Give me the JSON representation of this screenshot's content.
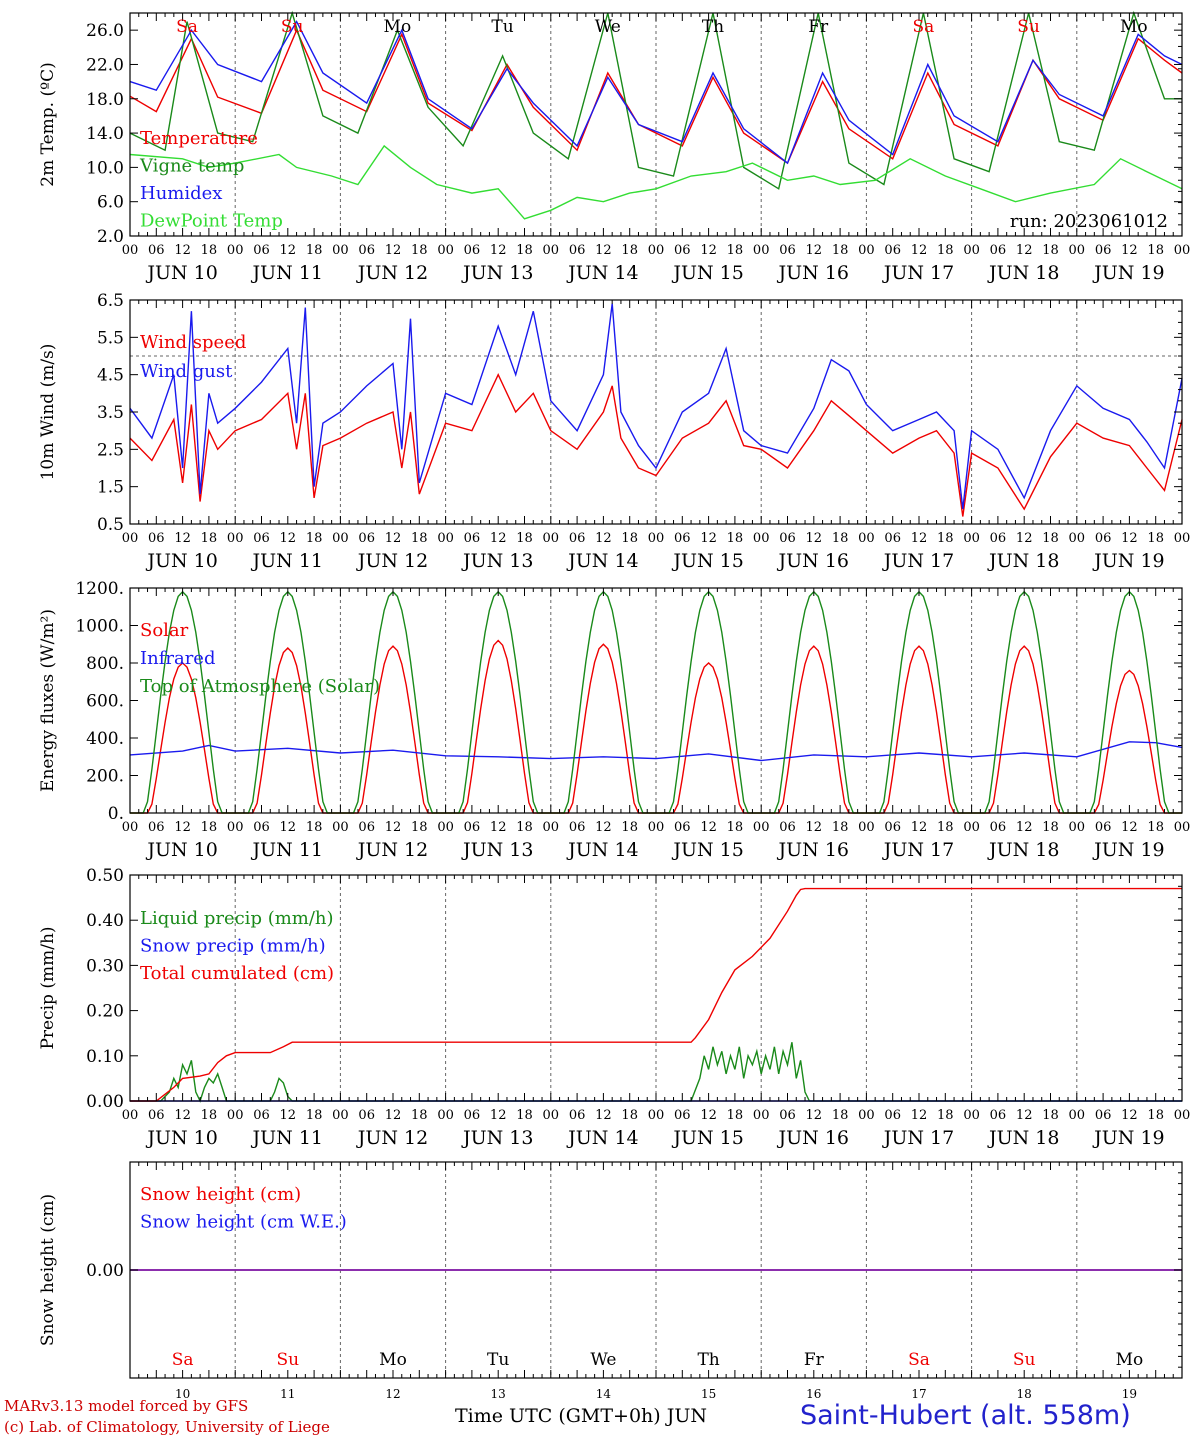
{
  "colors": {
    "red": "#ee0000",
    "blue": "#1a1aee",
    "dark_green": "#1a8a1a",
    "light_green": "#33dd33",
    "purple": "#8e24aa",
    "grid": "#666666",
    "axis": "#000000",
    "weekend": "#ee0000",
    "weekday": "#000000"
  },
  "days": [
    {
      "abbr": "Sa",
      "date_label": "JUN 10",
      "num": "10",
      "weekend": true
    },
    {
      "abbr": "Su",
      "date_label": "JUN 11",
      "num": "11",
      "weekend": true
    },
    {
      "abbr": "Mo",
      "date_label": "JUN 12",
      "num": "12",
      "weekend": false
    },
    {
      "abbr": "Tu",
      "date_label": "JUN 13",
      "num": "13",
      "weekend": false
    },
    {
      "abbr": "We",
      "date_label": "JUN 14",
      "num": "14",
      "weekend": false
    },
    {
      "abbr": "Th",
      "date_label": "JUN 15",
      "num": "15",
      "weekend": false
    },
    {
      "abbr": "Fr",
      "date_label": "JUN 16",
      "num": "16",
      "weekend": false
    },
    {
      "abbr": "Sa",
      "date_label": "JUN 17",
      "num": "17",
      "weekend": true
    },
    {
      "abbr": "Su",
      "date_label": "JUN 18",
      "num": "18",
      "weekend": true
    },
    {
      "abbr": "Mo",
      "date_label": "JUN 19",
      "num": "19",
      "weekend": false
    }
  ],
  "hour_ticks": [
    "00",
    "06",
    "12",
    "18"
  ],
  "final_hour_tick": "00",
  "footer": {
    "model": "MARv3.13 model forced by GFS",
    "lab": "(c) Lab. of Climatology, University of Liege",
    "time_label": "Time UTC (GMT+0h) JUN",
    "station": "Saint-Hubert (alt. 558m)"
  },
  "chart_data": [
    {
      "type": "line",
      "ylabel": "2m Temp. (ºC)",
      "ylim": [
        2.0,
        28.0
      ],
      "yticks": [
        2.0,
        6.0,
        10.0,
        14.0,
        18.0,
        22.0,
        26.0
      ],
      "ytick_labels": [
        "2.0",
        "6.0",
        "10.0",
        "14.0",
        "18.0",
        "22.0",
        "26.0"
      ],
      "x_unit": "hours since JUN 10 00 UTC",
      "xlim": [
        0,
        240
      ],
      "annotation": "run: 2023061012",
      "show_day_abbr": true,
      "series": [
        {
          "name": "Temperature",
          "color": "red",
          "x": [
            0,
            6,
            14,
            20,
            30,
            38,
            44,
            54,
            62,
            68,
            78,
            86,
            92,
            102,
            109,
            116,
            126,
            133,
            140,
            150,
            158,
            164,
            174,
            182,
            188,
            198,
            206,
            212,
            222,
            230,
            236,
            240
          ],
          "y": [
            18.3,
            16.5,
            25.0,
            18.2,
            16.3,
            26.0,
            19.0,
            16.5,
            25.5,
            17.5,
            14.3,
            22.0,
            17.0,
            12.0,
            21.0,
            15.0,
            12.5,
            20.5,
            14.0,
            10.5,
            20.0,
            14.5,
            11.0,
            21.0,
            15.0,
            12.5,
            22.5,
            18.0,
            15.5,
            25.0,
            22.5,
            21.0
          ]
        },
        {
          "name": "Vigne temp",
          "color": "dark_green",
          "x": [
            0,
            8,
            13,
            20,
            28,
            37,
            44,
            52,
            61,
            68,
            76,
            85,
            92,
            100,
            109,
            116,
            124,
            133,
            140,
            148,
            157,
            164,
            172,
            181,
            188,
            196,
            205,
            212,
            220,
            229,
            236,
            240
          ],
          "y": [
            14.0,
            12.0,
            27.0,
            14.0,
            13.0,
            28.0,
            16.0,
            14.0,
            26.0,
            17.0,
            12.5,
            23.0,
            14.0,
            11.0,
            28.0,
            10.0,
            9.0,
            28.0,
            10.0,
            7.5,
            28.0,
            10.5,
            8.0,
            28.0,
            11.0,
            9.5,
            28.0,
            13.0,
            12.0,
            28.0,
            18.0,
            18.0
          ]
        },
        {
          "name": "Humidex",
          "color": "blue",
          "x": [
            0,
            6,
            14,
            20,
            30,
            38,
            44,
            54,
            62,
            68,
            78,
            86,
            92,
            102,
            109,
            116,
            126,
            133,
            140,
            150,
            158,
            164,
            174,
            182,
            188,
            198,
            206,
            212,
            222,
            230,
            236,
            240
          ],
          "y": [
            20.0,
            19.0,
            26.0,
            22.0,
            20.0,
            27.0,
            21.0,
            17.5,
            26.0,
            18.0,
            14.5,
            21.5,
            17.5,
            12.5,
            20.5,
            15.0,
            13.0,
            21.0,
            14.5,
            10.5,
            21.0,
            15.5,
            11.5,
            22.0,
            16.0,
            13.0,
            22.5,
            18.5,
            16.0,
            25.5,
            23.0,
            22.0
          ]
        },
        {
          "name": "DewPoint Temp",
          "color": "light_green",
          "x": [
            0,
            12,
            18,
            24,
            34,
            38,
            46,
            52,
            58,
            64,
            70,
            78,
            84,
            90,
            96,
            102,
            108,
            114,
            120,
            128,
            136,
            142,
            150,
            156,
            162,
            170,
            178,
            186,
            194,
            202,
            210,
            220,
            226,
            232,
            240
          ],
          "y": [
            11.5,
            11.0,
            10.0,
            10.5,
            11.5,
            10.0,
            9.0,
            8.0,
            12.5,
            10.0,
            8.0,
            7.0,
            7.5,
            4.0,
            5.0,
            6.5,
            6.0,
            7.0,
            7.5,
            9.0,
            9.5,
            10.5,
            8.5,
            9.0,
            8.0,
            8.5,
            11.0,
            9.0,
            7.5,
            6.0,
            7.0,
            8.0,
            11.0,
            9.5,
            7.5
          ]
        }
      ]
    },
    {
      "type": "line",
      "ylabel": "10m Wind (m/s)",
      "ylim": [
        0.5,
        6.5
      ],
      "yticks": [
        0.5,
        1.5,
        2.5,
        3.5,
        4.5,
        5.5,
        6.5
      ],
      "ytick_labels": [
        "0.5",
        "1.5",
        "2.5",
        "3.5",
        "4.5",
        "5.5",
        "6.5"
      ],
      "reference_line": 5.0,
      "x_unit": "hours since JUN 10 00 UTC",
      "xlim": [
        0,
        240
      ],
      "series": [
        {
          "name": "Wind speed",
          "color": "red",
          "x": [
            0,
            5,
            10,
            12,
            14,
            16,
            18,
            20,
            24,
            30,
            36,
            38,
            40,
            42,
            44,
            48,
            54,
            60,
            62,
            64,
            66,
            72,
            78,
            84,
            88,
            92,
            96,
            102,
            108,
            110,
            112,
            116,
            120,
            126,
            132,
            136,
            140,
            144,
            150,
            156,
            160,
            164,
            168,
            174,
            180,
            184,
            188,
            190,
            192,
            198,
            204,
            210,
            216,
            222,
            228,
            232,
            236,
            240
          ],
          "y": [
            2.8,
            2.2,
            3.3,
            1.6,
            3.7,
            1.1,
            3.0,
            2.5,
            3.0,
            3.3,
            4.0,
            2.5,
            4.0,
            1.2,
            2.6,
            2.8,
            3.2,
            3.5,
            2.0,
            3.5,
            1.3,
            3.2,
            3.0,
            4.5,
            3.5,
            4.0,
            3.0,
            2.5,
            3.5,
            4.2,
            2.8,
            2.0,
            1.8,
            2.8,
            3.2,
            3.8,
            2.6,
            2.5,
            2.0,
            3.0,
            3.8,
            3.4,
            3.0,
            2.4,
            2.8,
            3.0,
            2.4,
            0.7,
            2.4,
            2.0,
            0.9,
            2.3,
            3.2,
            2.8,
            2.6,
            2.0,
            1.4,
            3.3
          ]
        },
        {
          "name": "Wind gust",
          "color": "blue",
          "x": [
            0,
            5,
            10,
            12,
            14,
            16,
            18,
            20,
            24,
            30,
            36,
            38,
            40,
            42,
            44,
            48,
            54,
            60,
            62,
            64,
            66,
            72,
            78,
            84,
            88,
            92,
            96,
            102,
            108,
            110,
            112,
            116,
            120,
            126,
            132,
            136,
            140,
            144,
            150,
            156,
            160,
            164,
            168,
            174,
            180,
            184,
            188,
            190,
            192,
            198,
            204,
            210,
            216,
            222,
            228,
            232,
            236,
            240
          ],
          "y": [
            3.6,
            2.8,
            4.5,
            2.0,
            6.2,
            1.3,
            4.0,
            3.2,
            3.6,
            4.3,
            5.2,
            3.2,
            6.3,
            1.5,
            3.2,
            3.5,
            4.2,
            4.8,
            2.5,
            6.0,
            1.6,
            4.0,
            3.7,
            5.8,
            4.5,
            6.2,
            3.8,
            3.0,
            4.5,
            6.4,
            3.5,
            2.6,
            2.0,
            3.5,
            4.0,
            5.2,
            3.0,
            2.6,
            2.4,
            3.6,
            4.9,
            4.6,
            3.7,
            3.0,
            3.3,
            3.5,
            3.0,
            0.9,
            3.0,
            2.5,
            1.2,
            3.0,
            4.2,
            3.6,
            3.3,
            2.7,
            2.0,
            4.4
          ]
        }
      ]
    },
    {
      "type": "line",
      "ylabel": "Energy fluxes (W/m²)",
      "ylim": [
        0,
        1200
      ],
      "yticks": [
        0,
        200,
        400,
        600,
        800,
        1000,
        1200
      ],
      "ytick_labels": [
        "0.",
        "200.",
        "400.",
        "600.",
        "800.",
        "1000.",
        "1200."
      ],
      "x_unit": "hours since JUN 10 00 UTC",
      "xlim": [
        0,
        240
      ],
      "series": [
        {
          "name": "Solar",
          "color": "red",
          "daily_peak": [
            800,
            880,
            890,
            920,
            900,
            800,
            890,
            890,
            890,
            760
          ],
          "daily_hours": [
            4.5,
            19.5
          ]
        },
        {
          "name": "Infrared",
          "color": "blue",
          "x": [
            0,
            12,
            18,
            24,
            36,
            48,
            60,
            72,
            84,
            96,
            108,
            120,
            132,
            144,
            156,
            168,
            180,
            192,
            204,
            216,
            228,
            234,
            240
          ],
          "y": [
            310,
            330,
            360,
            330,
            345,
            320,
            335,
            305,
            300,
            290,
            300,
            290,
            315,
            280,
            310,
            300,
            320,
            300,
            320,
            300,
            380,
            375,
            350
          ]
        },
        {
          "name": "Top of Atmosphere (Solar)",
          "color": "dark_green",
          "daily_peak": [
            1180,
            1180,
            1180,
            1180,
            1180,
            1180,
            1180,
            1180,
            1180,
            1180
          ],
          "daily_hours": [
            3.5,
            20.5
          ]
        }
      ]
    },
    {
      "type": "line",
      "ylabel": "Precip (mm/h)",
      "ylim": [
        0,
        0.5
      ],
      "yticks": [
        0,
        0.1,
        0.2,
        0.3,
        0.4,
        0.5
      ],
      "ytick_labels": [
        "0.00",
        "0.10",
        "0.20",
        "0.30",
        "0.40",
        "0.50"
      ],
      "x_unit": "hours since JUN 10 00 UTC",
      "xlim": [
        0,
        240
      ],
      "series": [
        {
          "name": "Liquid precip (mm/h)",
          "color": "dark_green",
          "x": [
            0,
            7,
            9,
            10,
            11,
            12,
            13,
            14,
            15,
            16,
            17,
            18,
            19,
            20,
            21,
            22,
            32,
            33,
            34,
            35,
            36,
            37,
            128,
            130,
            131,
            132,
            133,
            134,
            135,
            136,
            137,
            138,
            139,
            140,
            141,
            142,
            143,
            144,
            145,
            146,
            147,
            148,
            149,
            150,
            151,
            152,
            153,
            154,
            155,
            240
          ],
          "y": [
            0,
            0,
            0.02,
            0.05,
            0.03,
            0.08,
            0.06,
            0.09,
            0.02,
            0,
            0.03,
            0.05,
            0.04,
            0.06,
            0.03,
            0,
            0,
            0.02,
            0.05,
            0.04,
            0.01,
            0,
            0,
            0.05,
            0.1,
            0.07,
            0.12,
            0.08,
            0.11,
            0.06,
            0.1,
            0.07,
            0.12,
            0.05,
            0.1,
            0.08,
            0.11,
            0.06,
            0.1,
            0.07,
            0.12,
            0.06,
            0.11,
            0.08,
            0.13,
            0.05,
            0.09,
            0.02,
            0,
            0
          ]
        },
        {
          "name": "Snow precip (mm/h)",
          "color": "blue",
          "x": [
            0,
            240
          ],
          "y": [
            0,
            0
          ]
        },
        {
          "name": "Total cumulated (cm)",
          "color": "red",
          "x": [
            0,
            6,
            10,
            12,
            16,
            18,
            20,
            22,
            24,
            32,
            35,
            37,
            40,
            128,
            129,
            132,
            135,
            138,
            142,
            146,
            150,
            152,
            153,
            154,
            240
          ],
          "y": [
            0,
            0,
            0.03,
            0.05,
            0.055,
            0.06,
            0.085,
            0.1,
            0.107,
            0.107,
            0.12,
            0.13,
            0.13,
            0.13,
            0.14,
            0.18,
            0.24,
            0.29,
            0.32,
            0.36,
            0.42,
            0.455,
            0.468,
            0.47,
            0.47
          ]
        }
      ]
    },
    {
      "type": "line",
      "ylabel": "Snow height (cm)",
      "ylim": [
        -1,
        1
      ],
      "yticks": [
        0
      ],
      "ytick_labels": [
        "0.00"
      ],
      "x_unit": "hours since JUN 10 00 UTC",
      "xlim": [
        0,
        240
      ],
      "series": [
        {
          "name": "Snow height (cm)",
          "color": "red",
          "x": [
            0,
            240
          ],
          "y": [
            0,
            0
          ]
        },
        {
          "name": "Snow height (cm W.E.)",
          "color": "blue",
          "x": [
            0,
            240
          ],
          "y": [
            0,
            0
          ]
        }
      ]
    }
  ]
}
